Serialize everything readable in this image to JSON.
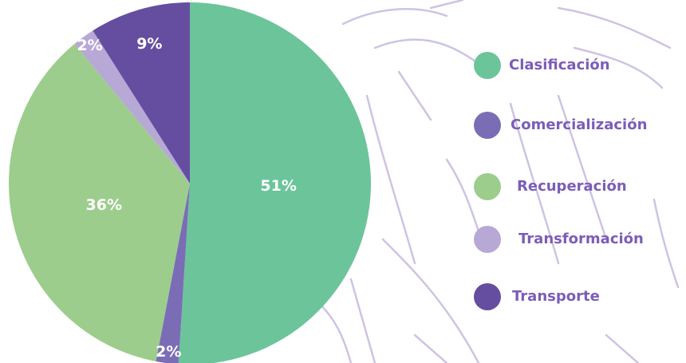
{
  "chart_data": {
    "type": "pie",
    "categories": [
      "Clasificación",
      "Comercialización",
      "Recuperación",
      "Transformación",
      "Transporte"
    ],
    "values": [
      51,
      2,
      36,
      2,
      9
    ],
    "value_labels": [
      "51%",
      "2%",
      "36%",
      "2%",
      "9%"
    ],
    "colors": [
      "#6cc49a",
      "#7a6db6",
      "#9ccd8c",
      "#b7a8d6",
      "#654ea0"
    ],
    "legend": "right"
  }
}
